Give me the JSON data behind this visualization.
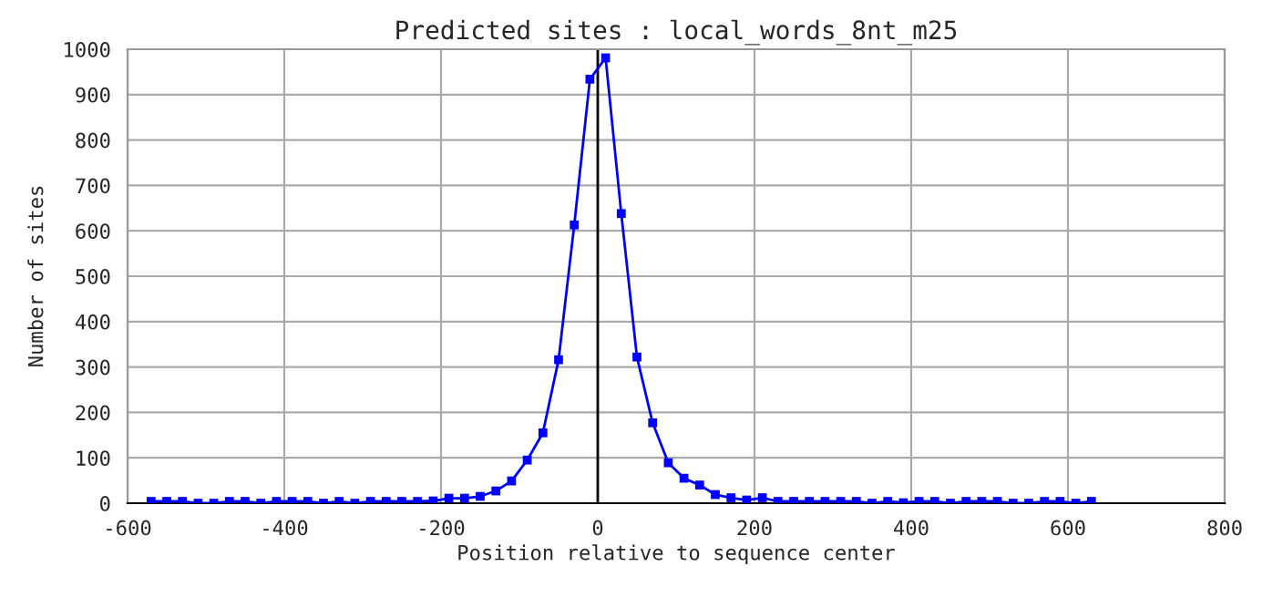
{
  "chart_data": {
    "type": "line",
    "title": "Predicted sites : local_words_8nt_m25",
    "xlabel": "Position relative to sequence center",
    "ylabel": "Number of sites",
    "x": [
      -570,
      -550,
      -530,
      -510,
      -490,
      -470,
      -450,
      -430,
      -410,
      -390,
      -370,
      -350,
      -330,
      -310,
      -290,
      -270,
      -250,
      -230,
      -210,
      -190,
      -170,
      -150,
      -130,
      -110,
      -90,
      -70,
      -50,
      -30,
      -10,
      10,
      30,
      50,
      70,
      90,
      110,
      130,
      150,
      170,
      190,
      210,
      230,
      250,
      270,
      290,
      310,
      330,
      350,
      370,
      390,
      410,
      430,
      450,
      470,
      490,
      510,
      530,
      550,
      570,
      590,
      610,
      630
    ],
    "series": [
      {
        "color": "#0000ff",
        "values": [
          4,
          4,
          4,
          0,
          0,
          4,
          4,
          0,
          4,
          4,
          4,
          0,
          4,
          0,
          4,
          4,
          4,
          4,
          5,
          11,
          11,
          15,
          27,
          49,
          95,
          155,
          316,
          613,
          934,
          981,
          638,
          322,
          177,
          89,
          55,
          40,
          19,
          12,
          7,
          12,
          4,
          4,
          4,
          4,
          4,
          4,
          0,
          4,
          1,
          4,
          4,
          0,
          4,
          4,
          4,
          0,
          0,
          4,
          4,
          0,
          4
        ]
      }
    ],
    "xlim": [
      -600,
      800
    ],
    "xticks": [
      -600,
      -400,
      -200,
      0,
      200,
      400,
      600,
      800
    ],
    "ylim": [
      0,
      1000
    ],
    "yticks": [
      0,
      100,
      200,
      300,
      400,
      500,
      600,
      700,
      800,
      900,
      1000
    ],
    "ref_lines": [
      {
        "axis": "x",
        "value": 0,
        "color": "#000000"
      }
    ],
    "grid": true,
    "marker": "square",
    "line_style": "solid",
    "legend": false
  }
}
